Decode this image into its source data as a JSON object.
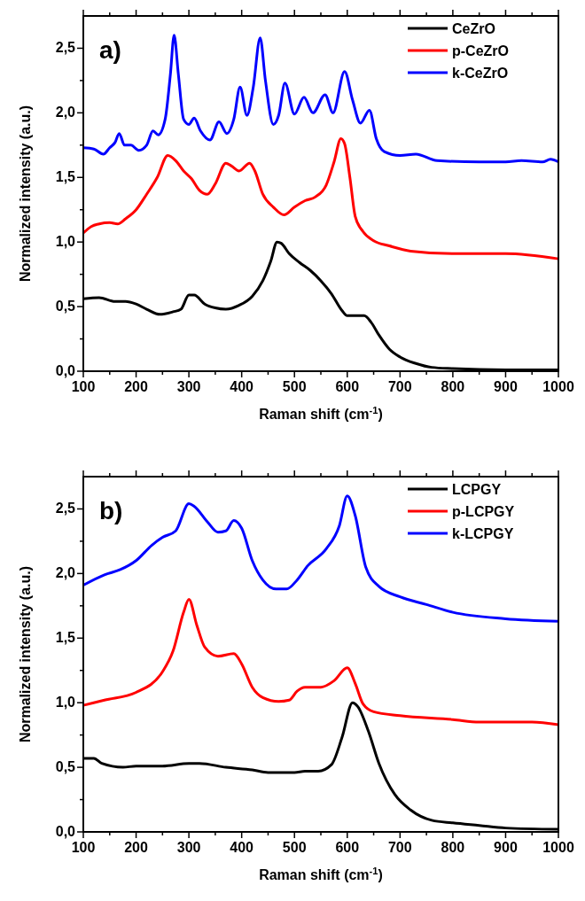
{
  "chart_data": [
    {
      "type": "line",
      "xlabel": "Raman shift (cm$^{-1}$)",
      "ylabel": "Normalized intensity (a.u.)",
      "annotations": [
        "a)"
      ],
      "legend": "top right",
      "xlim": [
        100,
        1000
      ],
      "ylim": [
        0,
        2.75
      ],
      "xticks": [
        100,
        {
          "value": 150,
          "label": null
        },
        200,
        {
          "value": 250,
          "label": null
        },
        300,
        {
          "value": 350,
          "label": null
        },
        400,
        {
          "value": 450,
          "label": null
        },
        500,
        {
          "value": 550,
          "label": null
        },
        600,
        {
          "value": 650,
          "label": null
        },
        700,
        {
          "value": 750,
          "label": null
        },
        800,
        {
          "value": 850,
          "label": null
        },
        900,
        {
          "value": 950,
          "label": null
        },
        1000
      ],
      "yticks": [
        {
          "value": 0,
          "label": "0,0"
        },
        {
          "value": 0.25,
          "label": null
        },
        {
          "value": 0.5,
          "label": "0,5"
        },
        {
          "value": 0.75,
          "label": null
        },
        {
          "value": 1,
          "label": "1,0"
        },
        {
          "value": 1.25,
          "label": null
        },
        {
          "value": 1.5,
          "label": "1,5"
        },
        {
          "value": 1.75,
          "label": null
        },
        {
          "value": 2,
          "label": "2,0"
        },
        {
          "value": 2.25,
          "label": null
        },
        {
          "value": 2.5,
          "label": "2,5"
        }
      ],
      "series": [
        {
          "name": "CeZrO",
          "color": "#000000",
          "x": [
            100,
            130,
            160,
            180,
            200,
            220,
            245,
            270,
            285,
            300,
            310,
            330,
            350,
            370,
            395,
            420,
            440,
            455,
            467,
            475,
            490,
            510,
            530,
            550,
            570,
            590,
            600,
            620,
            632,
            645,
            660,
            680,
            700,
            730,
            760,
            800,
            900,
            1000
          ],
          "values": [
            0.56,
            0.57,
            0.54,
            0.54,
            0.52,
            0.48,
            0.44,
            0.46,
            0.48,
            0.59,
            0.59,
            0.52,
            0.49,
            0.48,
            0.51,
            0.58,
            0.7,
            0.85,
            1.0,
            0.99,
            0.91,
            0.84,
            0.78,
            0.7,
            0.6,
            0.47,
            0.43,
            0.43,
            0.43,
            0.38,
            0.28,
            0.17,
            0.11,
            0.06,
            0.03,
            0.02,
            0.01,
            0.01
          ]
        },
        {
          "name": "p-CeZrO",
          "color": "#ff0000",
          "x": [
            100,
            115,
            130,
            150,
            165,
            180,
            200,
            220,
            240,
            260,
            275,
            290,
            305,
            320,
            335,
            350,
            370,
            380,
            395,
            415,
            425,
            440,
            460,
            480,
            500,
            520,
            540,
            560,
            575,
            588,
            595,
            605,
            615,
            630,
            650,
            680,
            720,
            800,
            900,
            1000
          ],
          "values": [
            1.07,
            1.12,
            1.14,
            1.15,
            1.14,
            1.18,
            1.25,
            1.37,
            1.5,
            1.67,
            1.63,
            1.55,
            1.49,
            1.4,
            1.37,
            1.45,
            1.61,
            1.59,
            1.55,
            1.61,
            1.55,
            1.37,
            1.27,
            1.21,
            1.27,
            1.32,
            1.35,
            1.44,
            1.62,
            1.8,
            1.76,
            1.5,
            1.2,
            1.08,
            1.01,
            0.97,
            0.93,
            0.91,
            0.91,
            0.87
          ]
        },
        {
          "name": "k-CeZrO",
          "color": "#0000ff",
          "x": [
            100,
            120,
            138,
            150,
            160,
            168,
            178,
            190,
            205,
            220,
            232,
            242,
            255,
            265,
            272,
            280,
            290,
            300,
            310,
            322,
            340,
            357,
            372,
            385,
            397,
            410,
            422,
            435,
            445,
            460,
            470,
            482,
            500,
            518,
            535,
            558,
            573,
            595,
            610,
            625,
            642,
            655,
            670,
            700,
            730,
            770,
            850,
            900,
            930,
            970,
            985,
            1000
          ],
          "values": [
            1.73,
            1.72,
            1.68,
            1.73,
            1.77,
            1.84,
            1.75,
            1.75,
            1.71,
            1.75,
            1.86,
            1.83,
            1.95,
            2.3,
            2.6,
            2.3,
            1.95,
            1.91,
            1.96,
            1.86,
            1.79,
            1.93,
            1.84,
            1.95,
            2.2,
            1.98,
            2.2,
            2.58,
            2.25,
            1.91,
            1.98,
            2.23,
            1.99,
            2.12,
            2.0,
            2.14,
            2.0,
            2.32,
            2.1,
            1.92,
            2.02,
            1.8,
            1.7,
            1.67,
            1.68,
            1.63,
            1.62,
            1.62,
            1.63,
            1.62,
            1.64,
            1.62
          ]
        }
      ]
    },
    {
      "type": "line",
      "xlabel": "Raman shift (cm$^{-1}$)",
      "ylabel": "Normalized intensity (a.u.)",
      "annotations": [
        "b)"
      ],
      "legend": "top right",
      "xlim": [
        100,
        1000
      ],
      "ylim": [
        0,
        2.75
      ],
      "xticks": [
        100,
        {
          "value": 150,
          "label": null
        },
        200,
        {
          "value": 250,
          "label": null
        },
        300,
        {
          "value": 350,
          "label": null
        },
        400,
        {
          "value": 450,
          "label": null
        },
        500,
        {
          "value": 550,
          "label": null
        },
        600,
        {
          "value": 650,
          "label": null
        },
        700,
        {
          "value": 750,
          "label": null
        },
        800,
        {
          "value": 850,
          "label": null
        },
        900,
        {
          "value": 950,
          "label": null
        },
        1000
      ],
      "yticks": [
        {
          "value": 0,
          "label": "0,0"
        },
        {
          "value": 0.25,
          "label": null
        },
        {
          "value": 0.5,
          "label": "0,5"
        },
        {
          "value": 0.75,
          "label": null
        },
        {
          "value": 1,
          "label": "1,0"
        },
        {
          "value": 1.25,
          "label": null
        },
        {
          "value": 1.5,
          "label": "1,5"
        },
        {
          "value": 1.75,
          "label": null
        },
        {
          "value": 2,
          "label": "2,0"
        },
        {
          "value": 2.25,
          "label": null
        },
        {
          "value": 2.5,
          "label": "2,5"
        }
      ],
      "series": [
        {
          "name": "LCPGY",
          "color": "#000000",
          "x": [
            100,
            120,
            135,
            175,
            200,
            250,
            300,
            320,
            370,
            420,
            450,
            500,
            520,
            545,
            570,
            590,
            610,
            620,
            640,
            660,
            690,
            720,
            760,
            800,
            850,
            900,
            1000
          ],
          "values": [
            0.57,
            0.57,
            0.53,
            0.5,
            0.51,
            0.51,
            0.53,
            0.53,
            0.5,
            0.48,
            0.46,
            0.46,
            0.47,
            0.47,
            0.52,
            0.73,
            1.0,
            0.97,
            0.78,
            0.53,
            0.29,
            0.17,
            0.09,
            0.07,
            0.05,
            0.03,
            0.02
          ]
        },
        {
          "name": "p-LCPGY",
          "color": "#ff0000",
          "x": [
            100,
            140,
            200,
            250,
            270,
            290,
            300,
            315,
            330,
            355,
            385,
            400,
            420,
            440,
            470,
            490,
            505,
            520,
            550,
            575,
            600,
            615,
            630,
            650,
            700,
            800,
            850,
            900,
            950,
            1000
          ],
          "values": [
            0.98,
            1.02,
            1.08,
            1.24,
            1.4,
            1.7,
            1.8,
            1.6,
            1.43,
            1.36,
            1.38,
            1.3,
            1.12,
            1.04,
            1.01,
            1.02,
            1.09,
            1.12,
            1.12,
            1.17,
            1.27,
            1.15,
            0.99,
            0.93,
            0.9,
            0.87,
            0.85,
            0.85,
            0.85,
            0.83
          ]
        },
        {
          "name": "k-LCPGY",
          "color": "#0000ff",
          "x": [
            100,
            140,
            170,
            200,
            230,
            250,
            275,
            300,
            310,
            335,
            355,
            370,
            385,
            400,
            420,
            440,
            465,
            485,
            505,
            525,
            560,
            585,
            600,
            615,
            635,
            660,
            700,
            750,
            800,
            900,
            1000
          ],
          "values": [
            1.91,
            1.99,
            2.03,
            2.1,
            2.22,
            2.28,
            2.33,
            2.54,
            2.52,
            2.4,
            2.32,
            2.33,
            2.41,
            2.35,
            2.1,
            1.95,
            1.88,
            1.88,
            1.95,
            2.06,
            2.19,
            2.37,
            2.6,
            2.45,
            2.05,
            1.9,
            1.82,
            1.76,
            1.7,
            1.65,
            1.63
          ]
        }
      ]
    }
  ]
}
